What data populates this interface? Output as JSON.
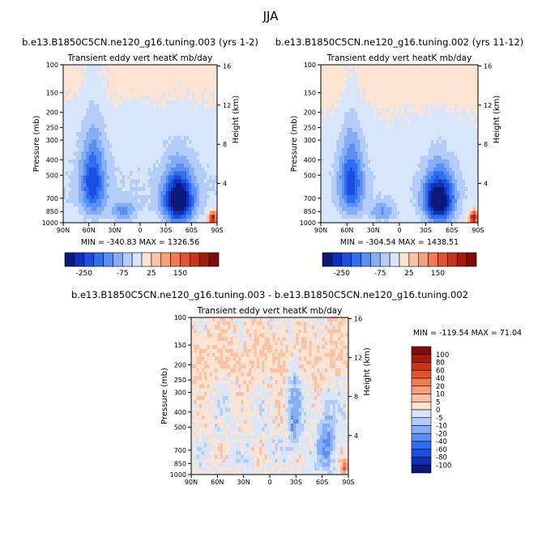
{
  "page_title": "JJA",
  "colors": {
    "scale_neg": [
      "#0a1a7a",
      "#1030b8",
      "#1a4fe0",
      "#2f6ef0",
      "#5a8ef2",
      "#86aef5",
      "#b3cdf8",
      "#d7e6fb"
    ],
    "scale_pos": [
      "#fde3d2",
      "#fac3a3",
      "#f6a07a",
      "#f07a52",
      "#e4532f",
      "#c93418",
      "#a51c0c",
      "#7e0c08"
    ]
  },
  "chart_data": [
    {
      "type": "heatmap",
      "title": "b.e13.B1850C5CN.ne120_g16.tuning.003 (yrs 1-2)",
      "subtitle": "Transient eddy vert heatK mb/day",
      "xlabel": "",
      "ylabel": "Pressure (mb)",
      "y2label": "Height (km)",
      "x_ticks": [
        "90N",
        "60N",
        "30N",
        "0",
        "30S",
        "60S",
        "90S"
      ],
      "y_ticks": [
        100,
        150,
        200,
        250,
        300,
        400,
        500,
        700,
        850,
        1000
      ],
      "y2_ticks": [
        16,
        12,
        8,
        4
      ],
      "ylim": [
        100,
        1000
      ],
      "y_scale": "log",
      "stats": "MIN = -340.83   MAX = 1326.56",
      "colorbar_labels": [
        "-250",
        "-75",
        "25",
        "150"
      ],
      "colorbar_orientation": "horizontal"
    },
    {
      "type": "heatmap",
      "title": "b.e13.B1850C5CN.ne120_g16.tuning.002 (yrs 11-12)",
      "subtitle": "Transient eddy vert heatK mb/day",
      "xlabel": "",
      "ylabel": "Pressure (mb)",
      "y2label": "Height (km)",
      "x_ticks": [
        "90N",
        "60N",
        "30N",
        "0",
        "30S",
        "60S",
        "90S"
      ],
      "y_ticks": [
        100,
        150,
        200,
        250,
        300,
        400,
        500,
        700,
        850,
        1000
      ],
      "y2_ticks": [
        16,
        12,
        8,
        4
      ],
      "ylim": [
        100,
        1000
      ],
      "y_scale": "log",
      "stats": "MIN = -304.54   MAX = 1438.51",
      "colorbar_labels": [
        "-250",
        "-75",
        "25",
        "150"
      ],
      "colorbar_orientation": "horizontal"
    },
    {
      "type": "heatmap",
      "title": "b.e13.B1850C5CN.ne120_g16.tuning.003 - b.e13.B1850C5CN.ne120_g16.tuning.002",
      "subtitle": "Transient eddy vert heatK mb/day",
      "xlabel": "",
      "ylabel": "Pressure (mb)",
      "y2label": "Height (km)",
      "x_ticks": [
        "90N",
        "60N",
        "30N",
        "0",
        "30S",
        "60S",
        "90S"
      ],
      "y_ticks": [
        100,
        150,
        200,
        250,
        300,
        400,
        500,
        700,
        850,
        1000
      ],
      "y2_ticks": [
        16,
        12,
        8,
        4
      ],
      "ylim": [
        100,
        1000
      ],
      "y_scale": "log",
      "stats": "MIN = -119.54   MAX =  71.04",
      "colorbar_labels": [
        "100",
        "80",
        "60",
        "40",
        "20",
        "10",
        "5",
        "0",
        "-5",
        "-10",
        "-20",
        "-40",
        "-60",
        "-80",
        "-100"
      ],
      "colorbar_orientation": "vertical"
    }
  ]
}
